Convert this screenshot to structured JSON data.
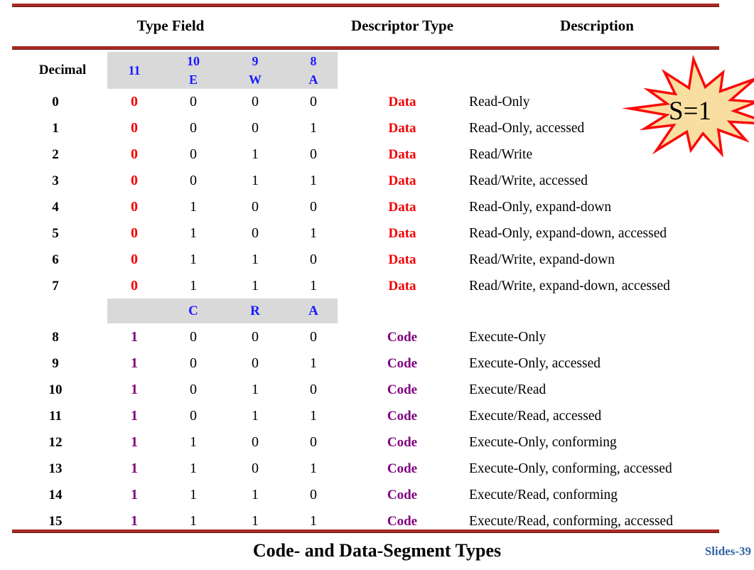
{
  "header": {
    "type_field": "Type Field",
    "descriptor_type": "Descriptor Type",
    "description": "Description"
  },
  "subheader": {
    "decimal_label": "Decimal",
    "bits": [
      {
        "number": "11",
        "flag": ""
      },
      {
        "number": "10",
        "flag": "E"
      },
      {
        "number": "9",
        "flag": "W"
      },
      {
        "number": "8",
        "flag": "A"
      }
    ]
  },
  "code_bits_band": {
    "labels": [
      "C",
      "R",
      "A"
    ]
  },
  "rows": [
    {
      "decimal": "0",
      "bit11": "0",
      "bit10": "0",
      "bit9": "0",
      "bit8": "0",
      "type": "Data",
      "description": "Read-Only"
    },
    {
      "decimal": "1",
      "bit11": "0",
      "bit10": "0",
      "bit9": "0",
      "bit8": "1",
      "type": "Data",
      "description": "Read-Only, accessed"
    },
    {
      "decimal": "2",
      "bit11": "0",
      "bit10": "0",
      "bit9": "1",
      "bit8": "0",
      "type": "Data",
      "description": "Read/Write"
    },
    {
      "decimal": "3",
      "bit11": "0",
      "bit10": "0",
      "bit9": "1",
      "bit8": "1",
      "type": "Data",
      "description": "Read/Write, accessed"
    },
    {
      "decimal": "4",
      "bit11": "0",
      "bit10": "1",
      "bit9": "0",
      "bit8": "0",
      "type": "Data",
      "description": "Read-Only, expand-down"
    },
    {
      "decimal": "5",
      "bit11": "0",
      "bit10": "1",
      "bit9": "0",
      "bit8": "1",
      "type": "Data",
      "description": "Read-Only, expand-down, accessed"
    },
    {
      "decimal": "6",
      "bit11": "0",
      "bit10": "1",
      "bit9": "1",
      "bit8": "0",
      "type": "Data",
      "description": "Read/Write, expand-down"
    },
    {
      "decimal": "7",
      "bit11": "0",
      "bit10": "1",
      "bit9": "1",
      "bit8": "1",
      "type": "Data",
      "description": "Read/Write, expand-down, accessed"
    },
    {
      "decimal": "8",
      "bit11": "1",
      "bit10": "0",
      "bit9": "0",
      "bit8": "0",
      "type": "Code",
      "description": "Execute-Only"
    },
    {
      "decimal": "9",
      "bit11": "1",
      "bit10": "0",
      "bit9": "0",
      "bit8": "1",
      "type": "Code",
      "description": "Execute-Only, accessed"
    },
    {
      "decimal": "10",
      "bit11": "1",
      "bit10": "0",
      "bit9": "1",
      "bit8": "0",
      "type": "Code",
      "description": "Execute/Read"
    },
    {
      "decimal": "11",
      "bit11": "1",
      "bit10": "0",
      "bit9": "1",
      "bit8": "1",
      "type": "Code",
      "description": "Execute/Read, accessed"
    },
    {
      "decimal": "12",
      "bit11": "1",
      "bit10": "1",
      "bit9": "0",
      "bit8": "0",
      "type": "Code",
      "description": "Execute-Only, conforming"
    },
    {
      "decimal": "13",
      "bit11": "1",
      "bit10": "1",
      "bit9": "0",
      "bit8": "1",
      "type": "Code",
      "description": "Execute-Only, conforming, accessed"
    },
    {
      "decimal": "14",
      "bit11": "1",
      "bit10": "1",
      "bit9": "1",
      "bit8": "0",
      "type": "Code",
      "description": "Execute/Read, conforming"
    },
    {
      "decimal": "15",
      "bit11": "1",
      "bit10": "1",
      "bit9": "1",
      "bit8": "1",
      "type": "Code",
      "description": "Execute/Read, conforming, accessed"
    }
  ],
  "callout": {
    "label": "S=1"
  },
  "footer": {
    "title": "Code- and Data-Segment Types",
    "slide_number": "Slides-39"
  },
  "colors": {
    "data_red": "#f40000",
    "code_purple": "#800080",
    "bit_blue": "#1a1aff",
    "rule_red": "#a62a22",
    "slide_num_blue": "#3465a4",
    "band_gray": "#d9d9d9",
    "star_fill": "#f8dfa1",
    "star_stroke": "#fb0a0a"
  }
}
